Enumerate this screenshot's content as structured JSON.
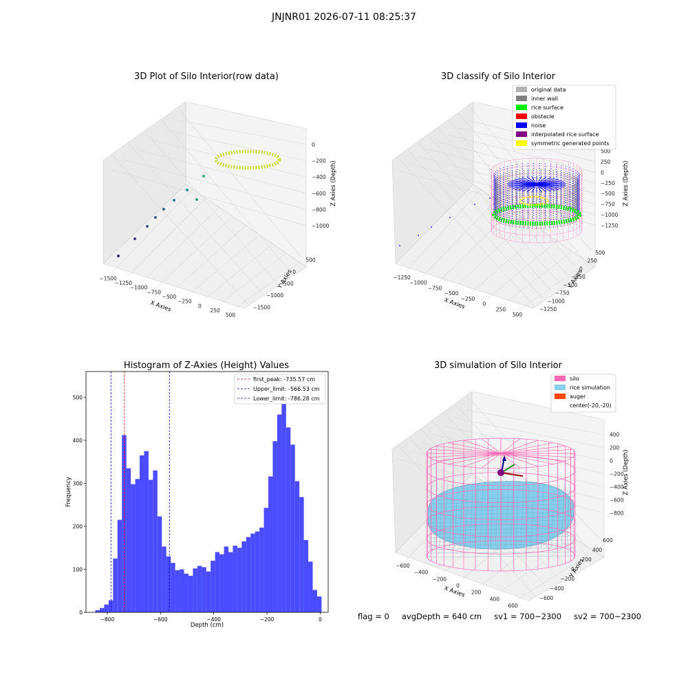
{
  "suptitle": "JNJNR01 2026-07-11 08:25:37",
  "panels": {
    "raw": {
      "title": "3D Plot of Silo Interior(row data)",
      "xlabel": "X Axies",
      "ylabel": "Y Axies",
      "zlabel": "Z Axies (Depth)",
      "xticks": [
        "−1500",
        "−1250",
        "−1000",
        "−750",
        "−500",
        "−250",
        "0",
        "250",
        "500"
      ],
      "yticks": [
        "500",
        "0",
        "−500",
        "−1000",
        "−1500"
      ],
      "zticks": [
        "0",
        "−200",
        "−400",
        "−600",
        "−800",
        "−1000"
      ]
    },
    "classify": {
      "title": "3D classify of Silo Interior",
      "xlabel": "X Axies",
      "ylabel": "Y Axies",
      "zlabel": "Z Axies (Depth)",
      "xticks": [
        "−1250",
        "−1000",
        "−750",
        "−500",
        "−250",
        "0",
        "250",
        "500"
      ],
      "yticks": [
        "500",
        "250",
        "0",
        "−250",
        "−500",
        "−750",
        "−1000",
        "−1250"
      ],
      "zticks": [
        "500",
        "250",
        "0",
        "−250",
        "−500",
        "−750",
        "−1000",
        "−1250"
      ],
      "legend": [
        {
          "label": "original data",
          "color": "#b3b3b3"
        },
        {
          "label": "inner wall",
          "color": "#808080"
        },
        {
          "label": "rice surface",
          "color": "#00ee00"
        },
        {
          "label": "obstacle",
          "color": "#ff0000"
        },
        {
          "label": "noise",
          "color": "#0000ff"
        },
        {
          "label": "interpolated rice surface",
          "color": "#800080"
        },
        {
          "label": "symmetric generated points",
          "color": "#ffff00"
        }
      ]
    },
    "simulation": {
      "title": "3D simulation of Silo Interior",
      "xlabel": "X Axies",
      "ylabel": "Y Axies",
      "zlabel": "Z Axies (Depth)",
      "xticks": [
        "−600",
        "−400",
        "−200",
        "0",
        "200",
        "400",
        "600"
      ],
      "yticks": [
        "600",
        "400",
        "200",
        "0",
        "−200",
        "−400",
        "−600"
      ],
      "zticks": [
        "400",
        "200",
        "0",
        "−200",
        "−400",
        "−600",
        "−800"
      ],
      "legend": [
        {
          "label": "silo",
          "color": "#ff69b4"
        },
        {
          "label": "rice simulation",
          "color": "#87ceeb"
        },
        {
          "label": "auger",
          "color": "#ff4500"
        },
        {
          "label": "center(-20,-20)",
          "color": ""
        }
      ]
    }
  },
  "footer": {
    "flag": "flag = 0",
    "avg_depth": "avgDepth = 640 cm",
    "sv1": "sv1 = 700~2300",
    "sv2": "sv2 = 700~2300"
  },
  "chart_data": [
    {
      "type": "bar",
      "title": "Histogram of Z-Axies (Height) Values",
      "xlabel": "Depth (cm)",
      "ylabel": "Frequency",
      "xlim": [
        -880,
        30
      ],
      "ylim": [
        0,
        560
      ],
      "xticks": [
        -800,
        -600,
        -400,
        -200,
        0
      ],
      "yticks": [
        0,
        100,
        200,
        300,
        400,
        500
      ],
      "bar_color": "#4b4bff",
      "bin_start": -845,
      "bin_width": 16.67,
      "values": [
        5,
        10,
        18,
        28,
        125,
        215,
        412,
        335,
        298,
        310,
        365,
        375,
        308,
        330,
        223,
        153,
        130,
        115,
        98,
        100,
        90,
        85,
        102,
        108,
        105,
        95,
        120,
        140,
        135,
        153,
        140,
        155,
        150,
        165,
        175,
        183,
        188,
        197,
        243,
        316,
        398,
        460,
        525,
        430,
        390,
        305,
        268,
        168,
        118,
        52,
        37
      ],
      "vlines": [
        {
          "name": "first_peak: -735.57 cm",
          "x": -735.57,
          "color": "#ff0000"
        },
        {
          "name": "Upper_limit: -566.53 cm",
          "x": -566.53,
          "color": "#0000cc"
        },
        {
          "name": "Lower_limit: -786.28 cm",
          "x": -786.28,
          "color": "#0000cc"
        }
      ],
      "legend_position": "upper right"
    }
  ]
}
